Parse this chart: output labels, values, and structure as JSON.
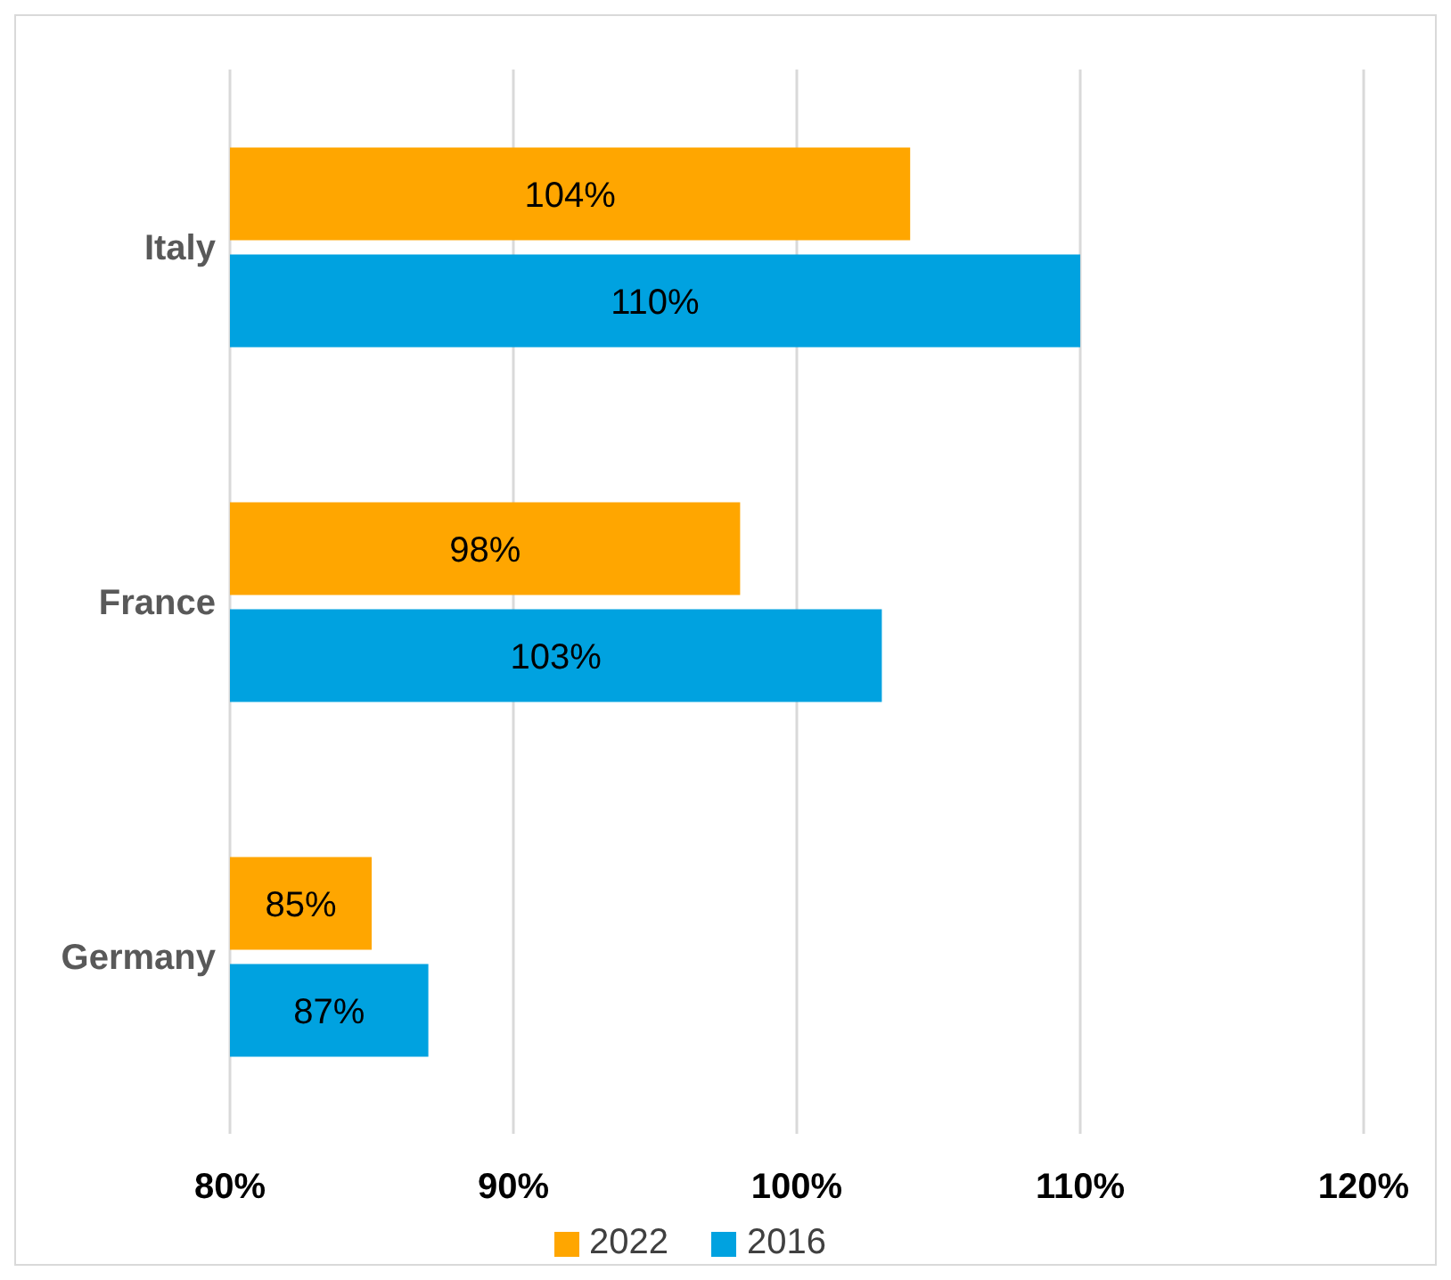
{
  "chart_data": {
    "type": "bar",
    "orientation": "horizontal",
    "categories": [
      "Italy",
      "France",
      "Germany"
    ],
    "series": [
      {
        "name": "2022",
        "color": "#ffa600",
        "values": [
          104,
          98,
          85
        ],
        "value_labels": [
          "104%",
          "98%",
          "85%"
        ]
      },
      {
        "name": "2016",
        "color": "#00a2e0",
        "values": [
          110,
          103,
          87
        ],
        "value_labels": [
          "110%",
          "103%",
          "87%"
        ]
      }
    ],
    "xlim": [
      80,
      120
    ],
    "xticks": [
      {
        "value": 80,
        "label": "80%"
      },
      {
        "value": 90,
        "label": "90%"
      },
      {
        "value": 100,
        "label": "100%"
      },
      {
        "value": 110,
        "label": "110%"
      },
      {
        "value": 120,
        "label": "120%"
      }
    ],
    "grid": "x",
    "legend": "bottom"
  }
}
